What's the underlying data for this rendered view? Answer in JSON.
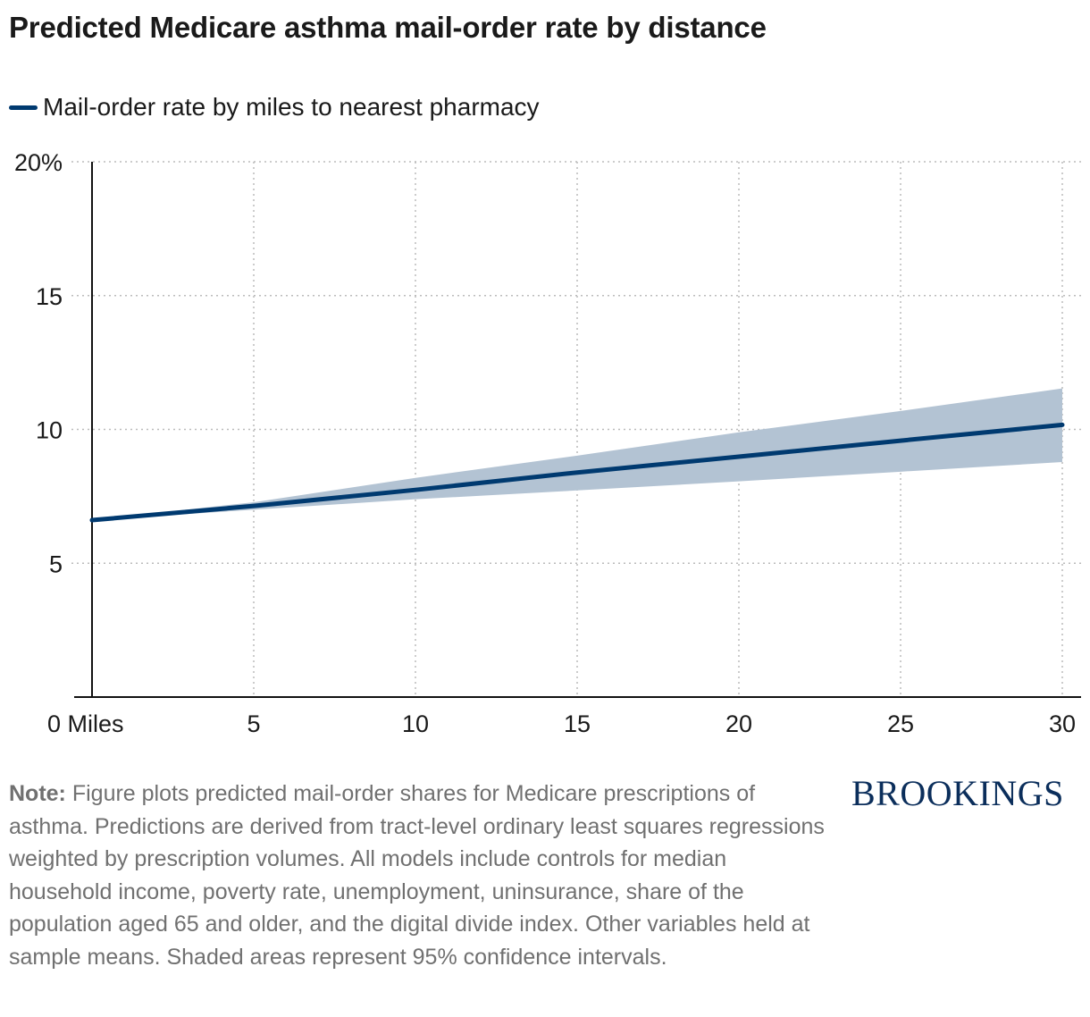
{
  "chart_data": {
    "type": "line",
    "title": "Predicted Medicare asthma mail-order rate by distance",
    "xlabel": "",
    "ylabel": "",
    "xlim": [
      0,
      30
    ],
    "ylim": [
      0,
      20
    ],
    "grid": true,
    "legend_placement": "top-left",
    "x_ticks": [
      0,
      5,
      10,
      15,
      20,
      25,
      30
    ],
    "x_tick_labels": [
      "0 Miles",
      "5",
      "10",
      "15",
      "20",
      "25",
      "30"
    ],
    "y_ticks": [
      5,
      10,
      15,
      20
    ],
    "y_tick_labels": [
      "5",
      "10",
      "15",
      "20%"
    ],
    "series": [
      {
        "name": "Mail-order rate by miles to nearest pharmacy",
        "color": "#003a70",
        "x": [
          0,
          5,
          10,
          15,
          20,
          25,
          30
        ],
        "y": [
          6.61,
          7.14,
          7.74,
          8.39,
          8.98,
          9.58,
          10.17
        ],
        "ci_upper": [
          6.61,
          7.28,
          8.19,
          9.02,
          9.89,
          10.69,
          11.53
        ],
        "ci_lower": [
          6.61,
          7.0,
          7.39,
          7.72,
          8.06,
          8.42,
          8.78
        ],
        "ci_color": "#b3c3d3"
      }
    ]
  },
  "note_label": "Note:",
  "note_text": " Figure plots predicted mail-order shares for Medicare prescriptions of asthma. Predictions are derived from tract-level ordinary least squares regressions weighted by prescription volumes. All models include controls for median household income, poverty rate, unemployment, uninsurance, share of the population aged 65 and older, and the digital divide index. Other variables held at sample means. Shaded areas represent 95% confidence intervals.",
  "logo": "BROOKINGS"
}
